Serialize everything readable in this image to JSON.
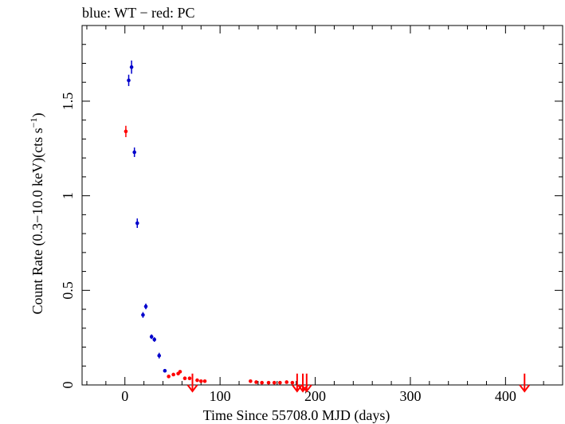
{
  "chart_data": {
    "type": "scatter",
    "title": "blue: WT − red: PC",
    "xlabel": "Time Since 55708.0 MJD (days)",
    "ylabel_main": "Count Rate (0.3−10.0 keV)(cts s",
    "ylabel_exp": "−1",
    "ylabel_close": ")",
    "xlim": [
      -45,
      460
    ],
    "ylim": [
      0,
      1.9
    ],
    "x_ticks": [
      0,
      100,
      200,
      300,
      400
    ],
    "x_tick_labels": [
      "0",
      "100",
      "200",
      "300",
      "400"
    ],
    "y_ticks": [
      0,
      0.5,
      1,
      1.5
    ],
    "y_tick_labels": [
      "0",
      "0.5",
      "1",
      "1.5"
    ],
    "grid": false,
    "series": [
      {
        "name": "WT",
        "color": "#0000cc",
        "points": [
          {
            "x": 4,
            "y": 1.61,
            "err": 0.03
          },
          {
            "x": 7,
            "y": 1.68,
            "err": 0.035
          },
          {
            "x": 10,
            "y": 1.23,
            "err": 0.025
          },
          {
            "x": 13,
            "y": 0.855,
            "err": 0.025
          },
          {
            "x": 19,
            "y": 0.37,
            "err": 0.015
          },
          {
            "x": 22,
            "y": 0.415,
            "err": 0.015
          },
          {
            "x": 28,
            "y": 0.255,
            "err": 0.012
          },
          {
            "x": 31,
            "y": 0.24,
            "err": 0.012
          },
          {
            "x": 36,
            "y": 0.155,
            "err": 0.015
          },
          {
            "x": 42,
            "y": 0.075,
            "err": 0.006
          }
        ]
      },
      {
        "name": "PC",
        "color": "#ff0000",
        "points": [
          {
            "x": 1,
            "y": 1.34,
            "err": 0.03
          },
          {
            "x": 46,
            "y": 0.045,
            "err": 0.005
          },
          {
            "x": 51,
            "y": 0.055,
            "err": 0.005
          },
          {
            "x": 56,
            "y": 0.06,
            "err": 0.005
          },
          {
            "x": 58,
            "y": 0.07,
            "err": 0.006
          },
          {
            "x": 63,
            "y": 0.035,
            "err": 0.005
          },
          {
            "x": 68,
            "y": 0.035,
            "err": 0.005
          },
          {
            "x": 76,
            "y": 0.025,
            "err": 0.004
          },
          {
            "x": 80,
            "y": 0.02,
            "err": 0.004
          },
          {
            "x": 84,
            "y": 0.02,
            "err": 0.004
          },
          {
            "x": 132,
            "y": 0.02,
            "err": 0.003
          },
          {
            "x": 138,
            "y": 0.015,
            "err": 0.003
          },
          {
            "x": 144,
            "y": 0.012,
            "err": 0.003
          },
          {
            "x": 151,
            "y": 0.012,
            "err": 0.003
          },
          {
            "x": 157,
            "y": 0.012,
            "err": 0.003
          },
          {
            "x": 163,
            "y": 0.012,
            "err": 0.003
          },
          {
            "x": 170,
            "y": 0.015,
            "err": 0.003
          },
          {
            "x": 176,
            "y": 0.012,
            "err": 0.003
          }
        ],
        "upper_limits": [
          {
            "x": 71,
            "y": 0.06
          },
          {
            "x": 181,
            "y": 0.06
          },
          {
            "x": 187,
            "y": 0.06
          },
          {
            "x": 191,
            "y": 0.06
          },
          {
            "x": 420,
            "y": 0.06
          }
        ]
      }
    ]
  }
}
